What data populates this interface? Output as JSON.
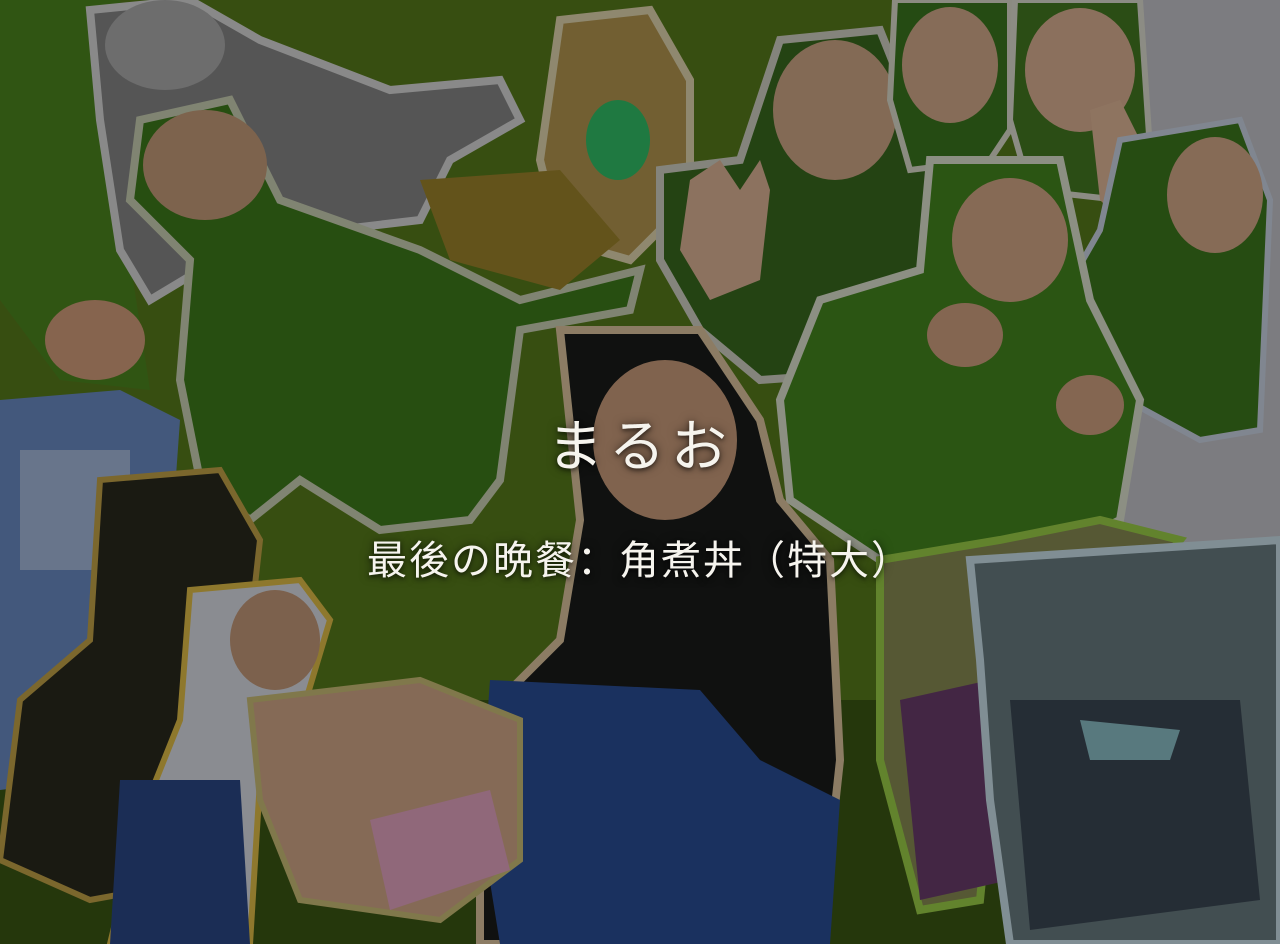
{
  "hero": {
    "title": "まるお",
    "subtitle": "最後の晩餐：角煮丼（特大）"
  },
  "colors": {
    "background_green": "#5f8a1e",
    "shirt_green": "#3f7a1c",
    "light_green": "#8cc63a",
    "overlay": "rgba(0,0,0,0.38)",
    "text": "#f6f4ee"
  },
  "collage": {
    "photos": [
      "laughing-man-grayscale",
      "laughing-man-green-shirt",
      "green-brooch",
      "peace-sign-man",
      "smiling-man-top",
      "grinning-man-top-right",
      "peace-sign-hand-right",
      "fist-pose-man",
      "fist-pose-man-right",
      "pixelated-figure",
      "glowing-edge-figure",
      "glasses-man-crouching",
      "thinking-man-black-shirt",
      "hand-with-notebook",
      "sneaker-purple",
      "sneaker-gray"
    ]
  }
}
